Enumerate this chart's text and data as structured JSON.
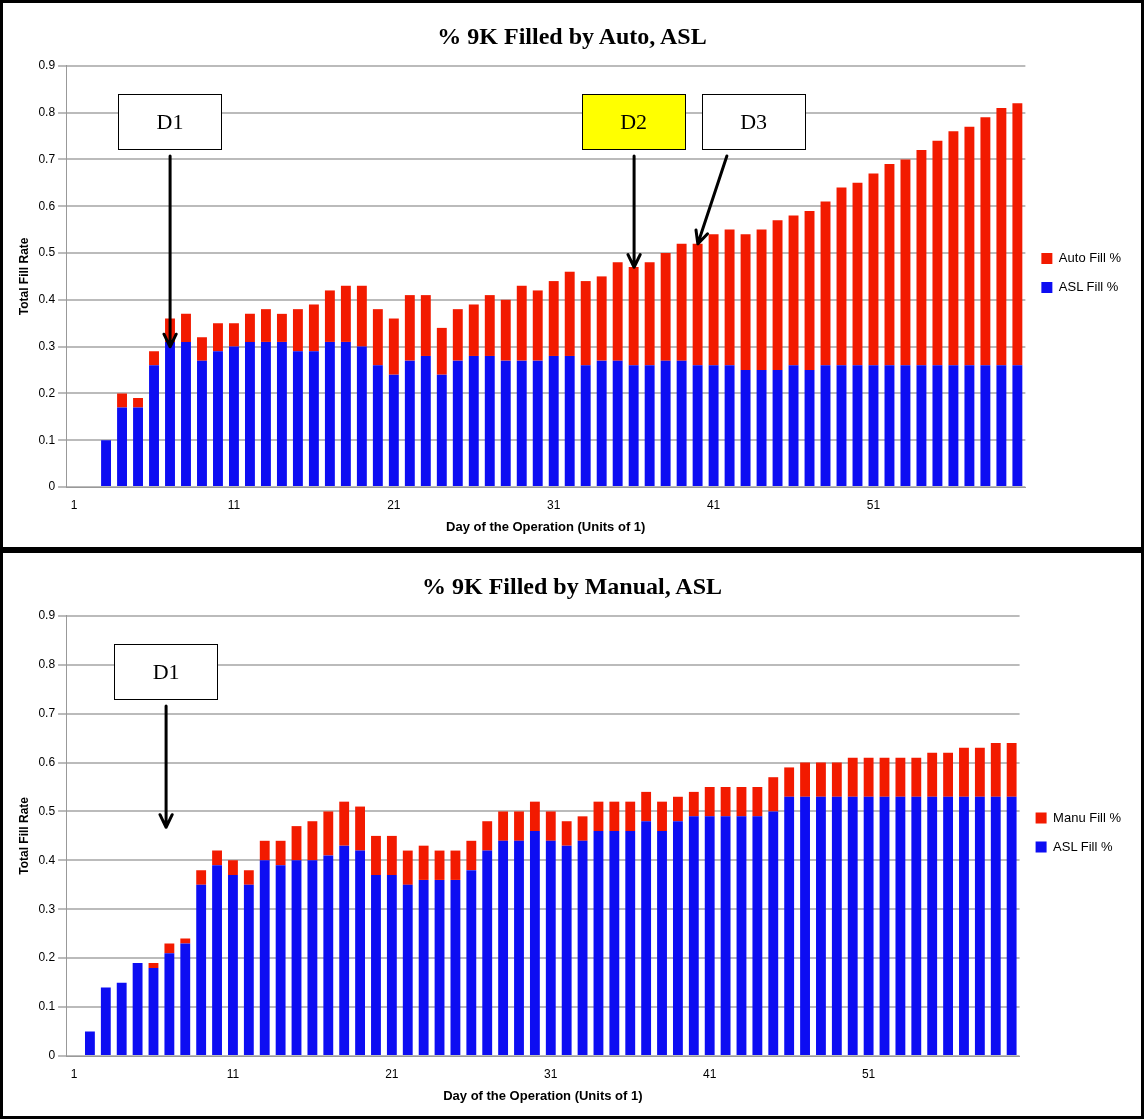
{
  "chart_data": [
    {
      "type": "bar",
      "title": "% 9K Filled by Auto, ASL",
      "xlabel": "Day of the Operation (Units of 1)",
      "ylabel": "Total Fill Rate",
      "stacked": true,
      "grid": "y",
      "legend": "right",
      "x": [
        3,
        4,
        5,
        6,
        7,
        8,
        9,
        10,
        11,
        12,
        13,
        14,
        15,
        16,
        17,
        18,
        19,
        20,
        21,
        22,
        23,
        24,
        25,
        26,
        27,
        28,
        29,
        30,
        31,
        32,
        33,
        34,
        35,
        36,
        37,
        38,
        39,
        40,
        41,
        42,
        43,
        44,
        45,
        46,
        47,
        48,
        49,
        50,
        51,
        52,
        53,
        54,
        55,
        56,
        57,
        58,
        59,
        60
      ],
      "xlim": [
        0.5,
        60.5
      ],
      "xticks": [
        1,
        11,
        21,
        31,
        41,
        51
      ],
      "ylim": [
        0,
        0.9
      ],
      "yticks": [
        0,
        0.1,
        0.2,
        0.3,
        0.4,
        0.5,
        0.6,
        0.7,
        0.8,
        0.9
      ],
      "series": [
        {
          "name": "ASL Fill %",
          "color": "#0d0df2",
          "values": [
            0.1,
            0.17,
            0.17,
            0.26,
            0.31,
            0.31,
            0.27,
            0.29,
            0.3,
            0.31,
            0.31,
            0.31,
            0.29,
            0.29,
            0.31,
            0.31,
            0.3,
            0.26,
            0.24,
            0.27,
            0.28,
            0.24,
            0.27,
            0.28,
            0.28,
            0.27,
            0.27,
            0.27,
            0.28,
            0.28,
            0.26,
            0.27,
            0.27,
            0.26,
            0.26,
            0.27,
            0.27,
            0.26,
            0.26,
            0.26,
            0.25,
            0.25,
            0.25,
            0.26,
            0.25,
            0.26,
            0.26,
            0.26,
            0.26,
            0.26,
            0.26,
            0.26,
            0.26,
            0.26,
            0.26,
            0.26,
            0.26,
            0.26
          ]
        },
        {
          "name": "Auto Fill %",
          "color": "#f21a00",
          "values": [
            null,
            0.03,
            0.02,
            0.03,
            0.05,
            0.06,
            0.05,
            0.06,
            0.05,
            0.06,
            0.07,
            0.06,
            0.09,
            0.1,
            0.11,
            0.12,
            0.13,
            0.12,
            0.12,
            0.14,
            0.13,
            0.1,
            0.11,
            0.11,
            0.13,
            0.13,
            0.16,
            0.15,
            0.16,
            0.18,
            0.18,
            0.18,
            0.21,
            0.21,
            0.22,
            0.23,
            0.25,
            0.26,
            0.28,
            0.29,
            0.29,
            0.3,
            0.32,
            0.32,
            0.34,
            0.35,
            0.38,
            0.39,
            0.41,
            0.43,
            0.44,
            0.46,
            0.48,
            0.5,
            0.51,
            0.53,
            0.55,
            0.56
          ]
        }
      ],
      "annotations": [
        {
          "text": "D1",
          "x": 7,
          "y": 0.3
        },
        {
          "text": "D2",
          "x": 36,
          "y": 0.47
        },
        {
          "text": "D3",
          "x": 40,
          "y": 0.52
        }
      ]
    },
    {
      "type": "bar",
      "title": "% 9K Filled by Manual, ASL",
      "xlabel": "Day of the Operation (Units of 1)",
      "ylabel": "Total Fill Rate",
      "stacked": true,
      "grid": "y",
      "legend": "right",
      "x": [
        2,
        3,
        4,
        5,
        6,
        7,
        8,
        9,
        10,
        11,
        12,
        13,
        14,
        15,
        16,
        17,
        18,
        19,
        20,
        21,
        22,
        23,
        24,
        25,
        26,
        27,
        28,
        29,
        30,
        31,
        32,
        33,
        34,
        35,
        36,
        37,
        38,
        39,
        40,
        41,
        42,
        43,
        44,
        45,
        46,
        47,
        48,
        49,
        50,
        51,
        52,
        53,
        54,
        55,
        56,
        57,
        58,
        59,
        60
      ],
      "xlim": [
        0.5,
        60.5
      ],
      "xticks": [
        1,
        11,
        21,
        31,
        41,
        51
      ],
      "ylim": [
        0,
        0.9
      ],
      "yticks": [
        0,
        0.1,
        0.2,
        0.3,
        0.4,
        0.5,
        0.6,
        0.7,
        0.8,
        0.9
      ],
      "series": [
        {
          "name": "ASL Fill %",
          "color": "#0d0df2",
          "values": [
            0.05,
            0.14,
            0.15,
            0.19,
            0.18,
            0.21,
            0.23,
            0.35,
            0.39,
            0.37,
            0.35,
            0.4,
            0.39,
            0.4,
            0.4,
            0.41,
            0.43,
            0.42,
            0.37,
            0.37,
            0.35,
            0.36,
            0.36,
            0.36,
            0.38,
            0.42,
            0.44,
            0.44,
            0.46,
            0.44,
            0.43,
            0.44,
            0.46,
            0.46,
            0.46,
            0.48,
            0.46,
            0.48,
            0.49,
            0.49,
            0.49,
            0.49,
            0.49,
            0.5,
            0.53,
            0.53,
            0.53,
            0.53,
            0.53,
            0.53,
            0.53,
            0.53,
            0.53,
            0.53,
            0.53,
            0.53,
            0.53,
            0.53,
            0.53
          ]
        },
        {
          "name": "Manu Fill %",
          "color": "#f21a00",
          "values": [
            null,
            null,
            null,
            null,
            0.01,
            0.02,
            0.01,
            0.03,
            0.03,
            0.03,
            0.03,
            0.04,
            0.05,
            0.07,
            0.08,
            0.09,
            0.09,
            0.09,
            0.08,
            0.08,
            0.07,
            0.07,
            0.06,
            0.06,
            0.06,
            0.06,
            0.06,
            0.06,
            0.06,
            0.06,
            0.05,
            0.05,
            0.06,
            0.06,
            0.06,
            0.06,
            0.06,
            0.05,
            0.05,
            0.06,
            0.06,
            0.06,
            0.06,
            0.07,
            0.06,
            0.07,
            0.07,
            0.07,
            0.08,
            0.08,
            0.08,
            0.08,
            0.08,
            0.09,
            0.09,
            0.1,
            0.1,
            0.11,
            0.11
          ]
        }
      ],
      "annotations": [
        "D1"
      ]
    }
  ]
}
